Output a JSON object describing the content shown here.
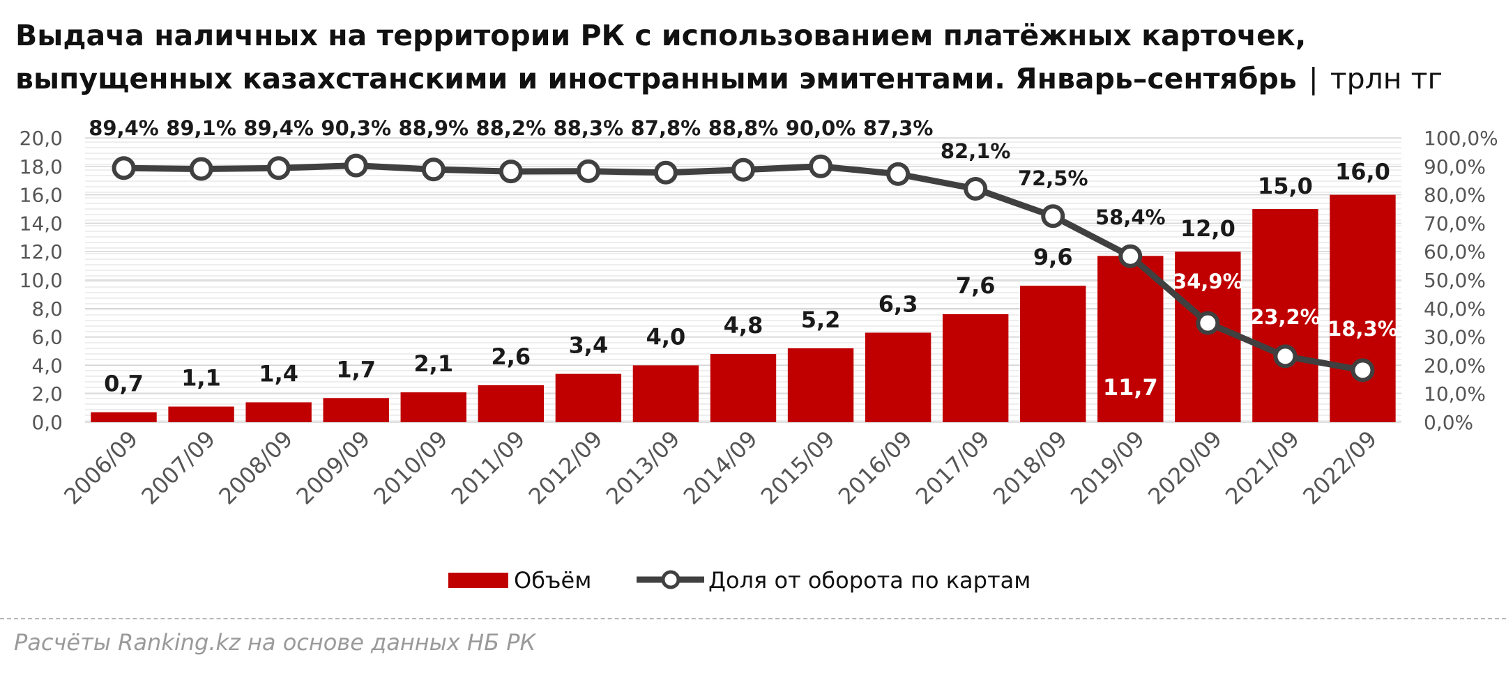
{
  "title": "Выдача наличных на территории РК с использованием платёжных карточек, выпущенных казахстанскими и иностранными эмитентами. Январь–сентябрь",
  "title_separator": "|",
  "unit": "трлн тг",
  "source": "Расчёты Ranking.kz на основе данных НБ РК",
  "colors": {
    "bar": "#c00000",
    "line": "#404040",
    "marker_fill": "#ffffff"
  },
  "chart_data": {
    "type": "bar",
    "categories": [
      "2006/09",
      "2007/09",
      "2008/09",
      "2009/09",
      "2010/09",
      "2011/09",
      "2012/09",
      "2013/09",
      "2014/09",
      "2015/09",
      "2016/09",
      "2017/09",
      "2018/09",
      "2019/09",
      "2020/09",
      "2021/09",
      "2022/09"
    ],
    "series": [
      {
        "name": "Объём",
        "type": "bar",
        "axis": "left",
        "values": [
          0.7,
          1.1,
          1.4,
          1.7,
          2.1,
          2.6,
          3.4,
          4.0,
          4.8,
          5.2,
          6.3,
          7.6,
          9.6,
          11.7,
          12.0,
          15.0,
          16.0
        ],
        "labels": [
          "0,7",
          "1,1",
          "1,4",
          "1,7",
          "2,1",
          "2,6",
          "3,4",
          "4,0",
          "4,8",
          "5,2",
          "6,3",
          "7,6",
          "9,6",
          "11,7",
          "12,0",
          "15,0",
          "16,0"
        ]
      },
      {
        "name": "Доля от оборота по картам",
        "type": "line",
        "axis": "right",
        "values": [
          89.4,
          89.1,
          89.4,
          90.3,
          88.9,
          88.2,
          88.3,
          87.8,
          88.8,
          90.0,
          87.3,
          82.1,
          72.5,
          58.4,
          34.9,
          23.2,
          18.3
        ],
        "labels": [
          "89,4%",
          "89,1%",
          "89,4%",
          "90,3%",
          "88,9%",
          "88,2%",
          "88,3%",
          "87,8%",
          "88,8%",
          "90,0%",
          "87,3%",
          "82,1%",
          "72,5%",
          "58,4%",
          "34,9%",
          "23,2%",
          "18,3%"
        ]
      }
    ],
    "y_left": {
      "min": 0,
      "max": 20,
      "ticks": [
        "0,0",
        "2,0",
        "4,0",
        "6,0",
        "8,0",
        "10,0",
        "12,0",
        "14,0",
        "16,0",
        "18,0",
        "20,0"
      ]
    },
    "y_right": {
      "min": 0,
      "max": 100,
      "ticks": [
        "0,0%",
        "10,0%",
        "20,0%",
        "30,0%",
        "40,0%",
        "50,0%",
        "60,0%",
        "70,0%",
        "80,0%",
        "90,0%",
        "100,0%"
      ]
    },
    "grid": true,
    "legend_position": "bottom"
  }
}
